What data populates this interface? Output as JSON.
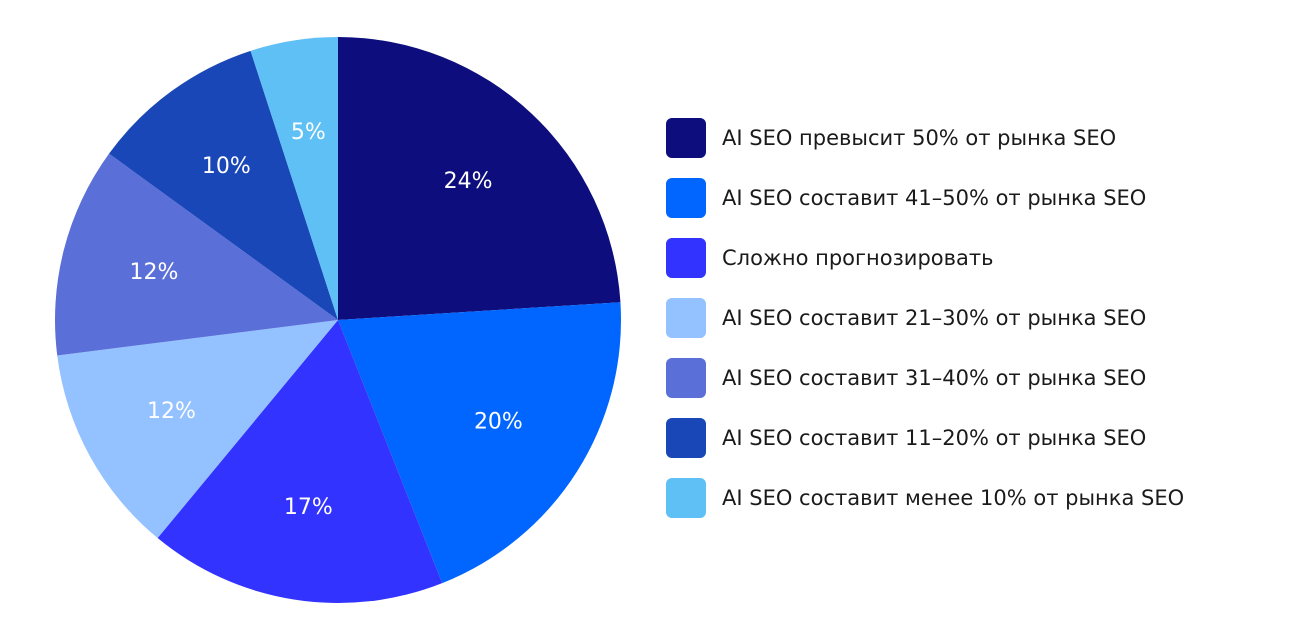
{
  "chart_data": {
    "type": "pie",
    "categories": [
      "AI SEO превысит 50% от рынка SEO",
      "AI SEO составит 41–50% от рынка SEO",
      "Сложно прогнозировать",
      "AI SEO составит 21–30% от рынка SEO",
      "AI SEO составит 31–40% от рынка SEO",
      "AI SEO составит 11–20% от рынка SEO",
      "AI SEO составит менее 10% от рынка SEO"
    ],
    "values": [
      24,
      20,
      17,
      12,
      12,
      10,
      5
    ],
    "value_labels": [
      "24%",
      "20%",
      "17%",
      "12%",
      "12%",
      "10%",
      "5%"
    ],
    "colors": [
      "#0d0d7d",
      "#0066ff",
      "#3333ff",
      "#94c1ff",
      "#5b6fd8",
      "#1a47b8",
      "#5ec0f5"
    ],
    "legend_position": "right"
  }
}
